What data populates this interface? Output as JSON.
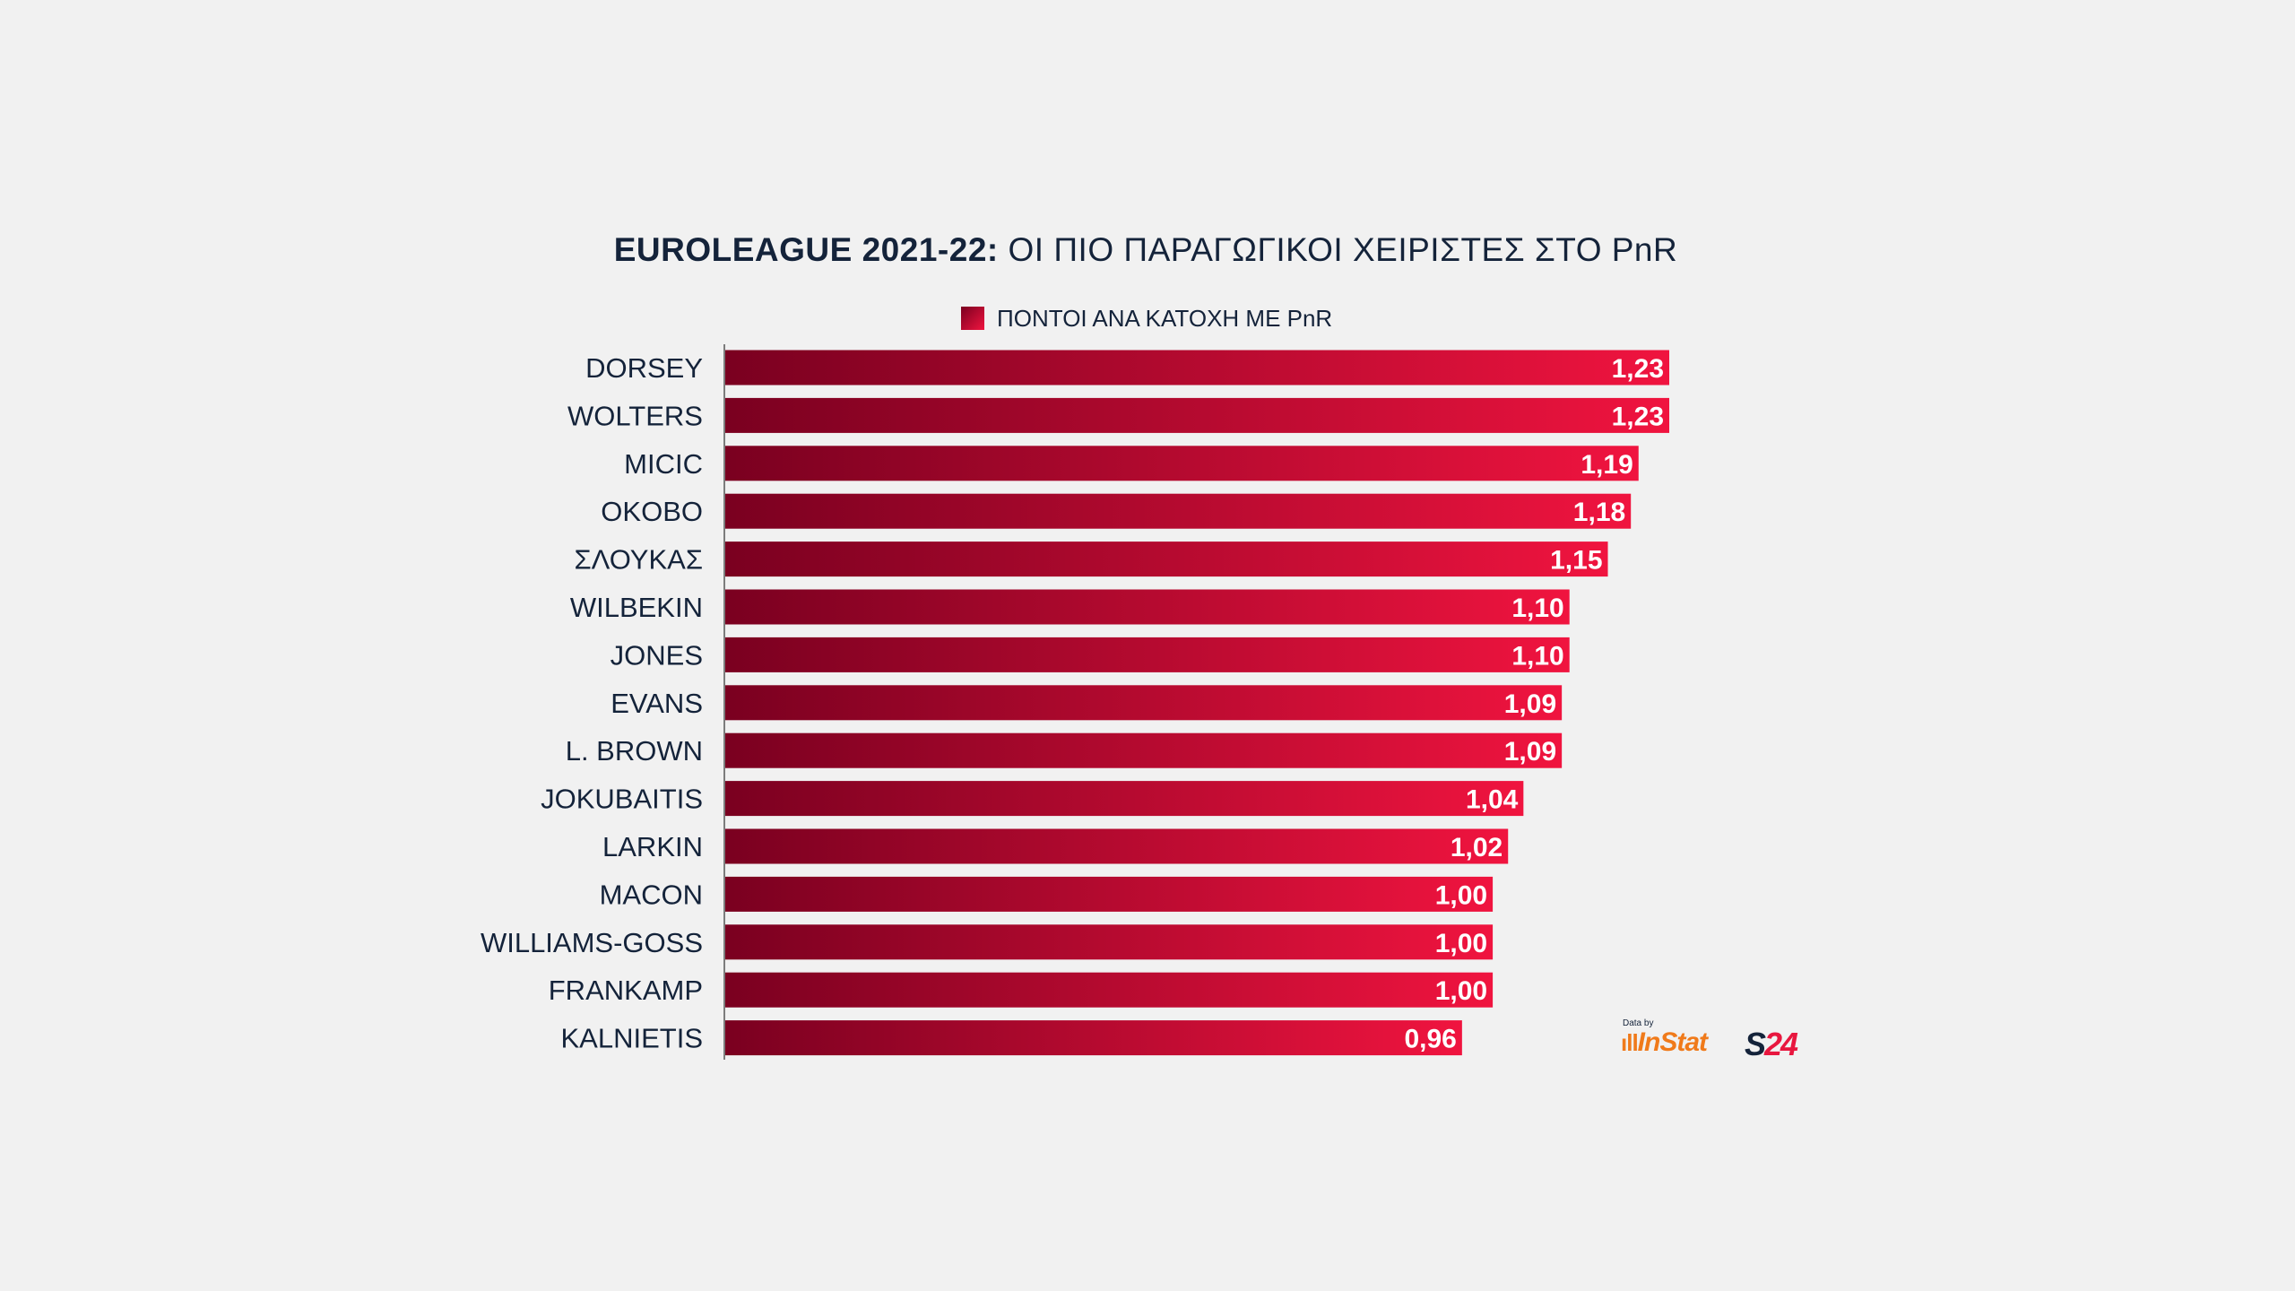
{
  "chart_data": {
    "type": "bar",
    "orientation": "horizontal",
    "title_bold": "EUROLEAGUE 2021-22:",
    "title_rest": "ΟΙ ΠΙΟ ΠΑΡΑΓΩΓΙΚΟΙ ΧΕΙΡΙΣΤΕΣ ΣΤΟ PnR",
    "legend": {
      "label": "ΠΟΝΤΟΙ ΑΝΑ ΚΑΤΟΧΗ ΜΕ PnR",
      "placement": "top-center"
    },
    "categories": [
      "DORSEY",
      "WOLTERS",
      "MICIC",
      "OKOBO",
      "ΣΛΟΥΚΑΣ",
      "WILBEKIN",
      "JONES",
      "EVANS",
      "L. BROWN",
      "JOKUBAITIS",
      "LARKIN",
      "MACON",
      "WILLIAMS-GOSS",
      "FRANKAMP",
      "KALNIETIS"
    ],
    "values": [
      1.23,
      1.23,
      1.19,
      1.18,
      1.15,
      1.1,
      1.1,
      1.09,
      1.09,
      1.04,
      1.02,
      1.0,
      1.0,
      1.0,
      0.96
    ],
    "value_labels": [
      "1,23",
      "1,23",
      "1,19",
      "1,18",
      "1,15",
      "1,10",
      "1,10",
      "1,09",
      "1,09",
      "1,04",
      "1,02",
      "1,00",
      "1,00",
      "1,00",
      "0,96"
    ],
    "xlim": [
      0,
      1.23
    ],
    "grid": false,
    "colors": {
      "bar_start": "#7a0020",
      "bar_end": "#f0143f",
      "text": "#14233a",
      "axis": "#555555"
    }
  },
  "credits": {
    "data_by": "Data by",
    "instat": "InStat",
    "s24_left": "S",
    "s24_right": "24"
  }
}
